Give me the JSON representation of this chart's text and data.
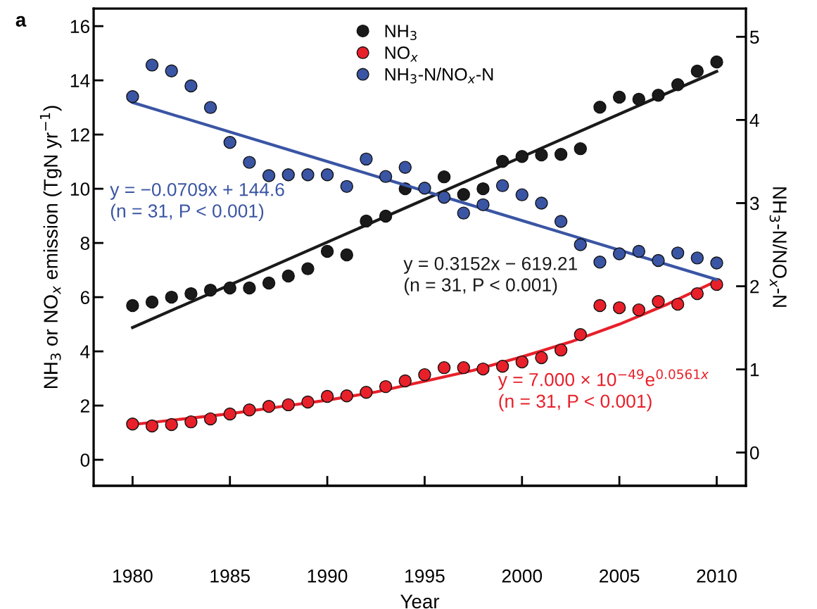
{
  "chart_data": {
    "type": "scatter",
    "title": "a",
    "xlabel": "Year",
    "ylabel": "NH$_{3}$ or NO$_{x}$ emission (TgN yr$^{−1}$)",
    "y2label": "NH$_{3}$-N/NO$_{x}$-N",
    "x": [
      1980,
      1981,
      1982,
      1983,
      1984,
      1985,
      1986,
      1987,
      1988,
      1989,
      1990,
      1991,
      1992,
      1993,
      1994,
      1995,
      1996,
      1997,
      1998,
      1999,
      2000,
      2001,
      2002,
      2003,
      2004,
      2005,
      2006,
      2007,
      2008,
      2009,
      2010
    ],
    "series": [
      {
        "name": "NH$_{3}$",
        "marker": "circle",
        "color": "#1a1a1a",
        "values": [
          5.69,
          5.82,
          6.0,
          6.13,
          6.26,
          6.34,
          6.34,
          6.52,
          6.78,
          7.05,
          7.69,
          7.56,
          8.81,
          8.99,
          10.0,
          null,
          10.44,
          9.79,
          10.0,
          11.01,
          11.19,
          11.25,
          11.27,
          11.48,
          13.01,
          13.38,
          13.3,
          13.45,
          13.84,
          14.34,
          14.68
        ]
      },
      {
        "name": "NO$_{x}$",
        "marker": "circle",
        "color": "#e8202a",
        "values": [
          1.32,
          1.25,
          1.3,
          1.4,
          1.51,
          1.69,
          1.84,
          1.97,
          2.03,
          2.13,
          2.34,
          2.36,
          2.49,
          2.7,
          2.91,
          3.14,
          3.4,
          3.4,
          3.35,
          3.45,
          3.61,
          3.77,
          4.05,
          4.62,
          5.69,
          5.61,
          5.53,
          5.84,
          5.74,
          6.13,
          6.47
        ]
      },
      {
        "name": "NH$_{3}$-N/NO$_{x}$-N",
        "marker": "circle",
        "color": "#3a55a4",
        "axis": "y2",
        "values": [
          4.28,
          4.66,
          4.59,
          4.41,
          4.15,
          3.73,
          3.49,
          3.33,
          3.34,
          3.34,
          3.34,
          3.2,
          3.53,
          3.32,
          3.43,
          3.18,
          3.07,
          2.88,
          2.98,
          3.21,
          3.1,
          3.0,
          2.78,
          2.5,
          2.29,
          2.39,
          2.42,
          2.31,
          2.4,
          2.34,
          2.28
        ]
      },
      {
        "type": "line",
        "color": "#3a55a4",
        "axis": "y2",
        "x": [
          1980,
          2010
        ],
        "values": [
          4.21,
          2.08
        ]
      },
      {
        "type": "line",
        "color": "#1a1a1a",
        "x": [
          1980,
          2010
        ],
        "values": [
          4.88,
          14.33
        ]
      },
      {
        "type": "line",
        "color": "#e8202a",
        "x": [
          1980,
          1982.5,
          1985,
          1987.5,
          1990,
          1992.5,
          1995,
          1997.5,
          2000,
          2002.5,
          2005,
          2007.5,
          2010
        ],
        "values": [
          1.3,
          1.5,
          1.7,
          1.95,
          2.2,
          2.5,
          2.9,
          3.3,
          3.8,
          4.35,
          5.0,
          5.75,
          6.6
        ]
      }
    ],
    "annotations": [
      "y = −0.0709x + 144.6\n(n = 31, P < 0.001)",
      "y = 0.3152x − 619.21\n(n = 31, P < 0.001)",
      "y = 7.000 × 10$^{−49}$e$^{0.0561x}$\n(n = 31, P < 0.001)"
    ],
    "xlim": [
      1978,
      2011.5
    ],
    "xticks": [
      1980,
      1985,
      1990,
      1995,
      2000,
      2005,
      2010
    ],
    "ylim": [
      -0.96,
      16.65
    ],
    "yticks": [
      0,
      2,
      4,
      6,
      8,
      10,
      12,
      14,
      16
    ],
    "y2lim": [
      -0.4,
      5.34
    ],
    "y2ticks": [
      0,
      1,
      2,
      3,
      4,
      5
    ],
    "legend": "top",
    "grid": false
  }
}
